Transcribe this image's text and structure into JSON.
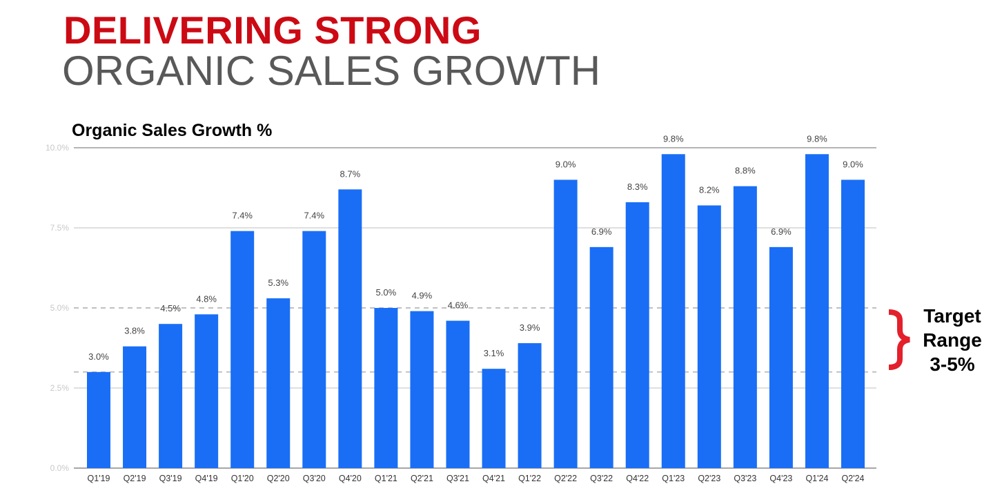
{
  "slide": {
    "title_line1": "DELIVERING STRONG",
    "title_line2": "ORGANIC SALES GROWTH"
  },
  "annotation": {
    "line1": "Target",
    "line2": "Range",
    "line3": "3-5%",
    "brace_color": "#e3202b"
  },
  "chart_data": {
    "type": "bar",
    "title": "Organic Sales Growth %",
    "xlabel": "",
    "ylabel": "",
    "ylim": [
      0,
      10
    ],
    "yticks": [
      0,
      2.5,
      5,
      7.5,
      10
    ],
    "ytick_labels": [
      "0.0%",
      "2.5%",
      "5.0%",
      "7.5%",
      "10.0%"
    ],
    "reference_lines": [
      3,
      5
    ],
    "bar_color": "#1a6ef5",
    "categories": [
      "Q1'19",
      "Q2'19",
      "Q3'19",
      "Q4'19",
      "Q1'20",
      "Q2'20",
      "Q3'20",
      "Q4'20",
      "Q1'21",
      "Q2'21",
      "Q3'21",
      "Q4'21",
      "Q1'22",
      "Q2'22",
      "Q3'22",
      "Q4'22",
      "Q1'23",
      "Q2'23",
      "Q3'23",
      "Q4'23",
      "Q1'24",
      "Q2'24"
    ],
    "values": [
      3.0,
      3.8,
      4.5,
      4.8,
      7.4,
      5.3,
      7.4,
      8.7,
      5.0,
      4.9,
      4.6,
      3.1,
      3.9,
      9.0,
      6.9,
      8.3,
      9.8,
      8.2,
      8.8,
      6.9,
      9.8,
      9.0
    ],
    "data_labels": [
      "3.0%",
      "3.8%",
      "4.5%",
      "4.8%",
      "7.4%",
      "5.3%",
      "7.4%",
      "8.7%",
      "5.0%",
      "4.9%",
      "4.6%",
      "3.1%",
      "3.9%",
      "9.0%",
      "6.9%",
      "8.3%",
      "9.8%",
      "8.2%",
      "8.8%",
      "6.9%",
      "9.8%",
      "9.0%"
    ]
  }
}
